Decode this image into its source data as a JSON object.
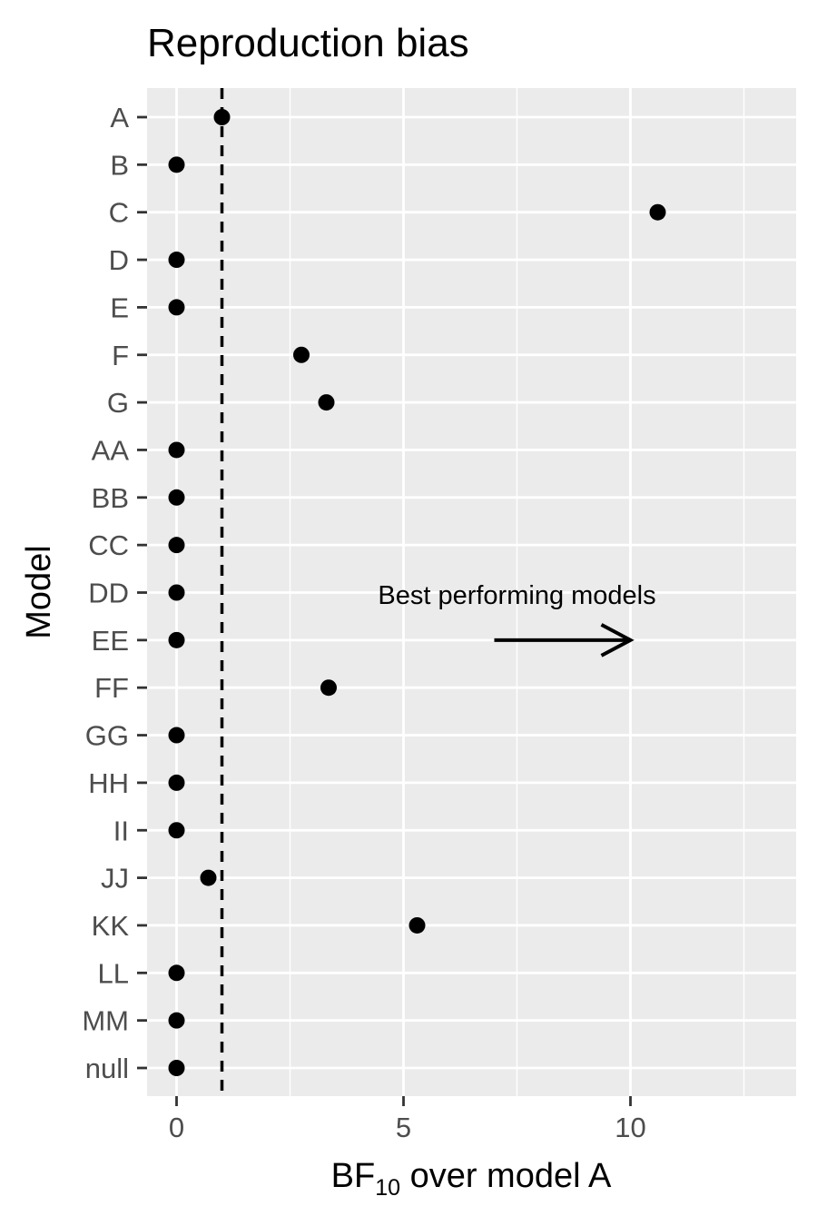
{
  "chart_data": {
    "type": "scatter",
    "title": "Reproduction bias",
    "xlabel": {
      "base": "BF",
      "subscript": "10",
      "rest": " over model A"
    },
    "ylabel": "Model",
    "xlim": [
      -0.65,
      13.65
    ],
    "x_ticks": [
      0,
      5,
      10
    ],
    "x_minor_ticks": [
      2.5,
      7.5,
      12.5
    ],
    "grid": true,
    "reference_line": {
      "x": 1,
      "style": "dashed"
    },
    "annotation": {
      "text": "Best performing models",
      "arrow_from": 7,
      "arrow_to": 10,
      "category": "EE"
    },
    "categories": [
      "A",
      "B",
      "C",
      "D",
      "E",
      "F",
      "G",
      "AA",
      "BB",
      "CC",
      "DD",
      "EE",
      "FF",
      "GG",
      "HH",
      "II",
      "JJ",
      "KK",
      "LL",
      "MM",
      "null"
    ],
    "values": [
      1,
      0,
      10.6,
      0,
      0,
      2.75,
      3.3,
      0,
      0,
      0,
      0,
      0,
      3.35,
      0,
      0,
      0,
      0.7,
      5.3,
      0,
      0,
      0
    ],
    "colors": {
      "panel": "#ebebeb",
      "grid": "#ffffff",
      "point": "#000000",
      "tick": "#333333"
    }
  }
}
